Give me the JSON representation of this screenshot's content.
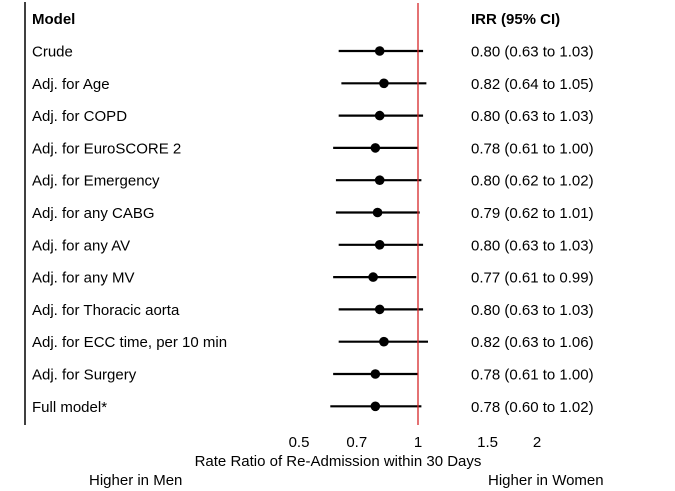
{
  "chart_data": {
    "type": "forest",
    "headers": {
      "model": "Model",
      "estimate": "IRR (95% CI)"
    },
    "xscale": "log",
    "xlim": [
      0.5,
      2
    ],
    "reference_line": 1,
    "reference_color": "#d62728",
    "xticks": [
      {
        "value": 0.5,
        "label": "0.5"
      },
      {
        "value": 0.7,
        "label": "0.7"
      },
      {
        "value": 1,
        "label": "1"
      },
      {
        "value": 1.5,
        "label": "1.5"
      },
      {
        "value": 2,
        "label": "2"
      }
    ],
    "xlabel": "Rate Ratio of Re-Admission within 30 Days",
    "left_annotation": "Higher in Men",
    "right_annotation": "Higher in Women",
    "rows": [
      {
        "label": "Crude",
        "irr": 0.8,
        "lo": 0.63,
        "hi": 1.03,
        "text": "0.80 (0.63 to 1.03)"
      },
      {
        "label": "Adj. for Age",
        "irr": 0.82,
        "lo": 0.64,
        "hi": 1.05,
        "text": "0.82 (0.64 to 1.05)"
      },
      {
        "label": "Adj. for COPD",
        "irr": 0.8,
        "lo": 0.63,
        "hi": 1.03,
        "text": "0.80 (0.63 to 1.03)"
      },
      {
        "label": "Adj. for EuroSCORE 2",
        "irr": 0.78,
        "lo": 0.61,
        "hi": 1.0,
        "text": "0.78 (0.61 to 1.00)"
      },
      {
        "label": "Adj. for Emergency",
        "irr": 0.8,
        "lo": 0.62,
        "hi": 1.02,
        "text": "0.80 (0.62 to 1.02)"
      },
      {
        "label": "Adj. for any CABG",
        "irr": 0.79,
        "lo": 0.62,
        "hi": 1.01,
        "text": "0.79 (0.62 to 1.01)"
      },
      {
        "label": "Adj. for any AV",
        "irr": 0.8,
        "lo": 0.63,
        "hi": 1.03,
        "text": "0.80 (0.63 to 1.03)"
      },
      {
        "label": "Adj. for any MV",
        "irr": 0.77,
        "lo": 0.61,
        "hi": 0.99,
        "text": "0.77 (0.61 to 0.99)"
      },
      {
        "label": "Adj. for Thoracic aorta",
        "irr": 0.8,
        "lo": 0.63,
        "hi": 1.03,
        "text": "0.80 (0.63 to 1.03)"
      },
      {
        "label": "Adj. for ECC time, per 10 min",
        "irr": 0.82,
        "lo": 0.63,
        "hi": 1.06,
        "text": "0.82 (0.63 to 1.06)"
      },
      {
        "label": "Adj. for Surgery",
        "irr": 0.78,
        "lo": 0.61,
        "hi": 1.0,
        "text": "0.78 (0.61 to 1.00)"
      },
      {
        "label": "Full model*",
        "irr": 0.78,
        "lo": 0.6,
        "hi": 1.02,
        "text": "0.78 (0.60 to 1.02)"
      }
    ]
  }
}
